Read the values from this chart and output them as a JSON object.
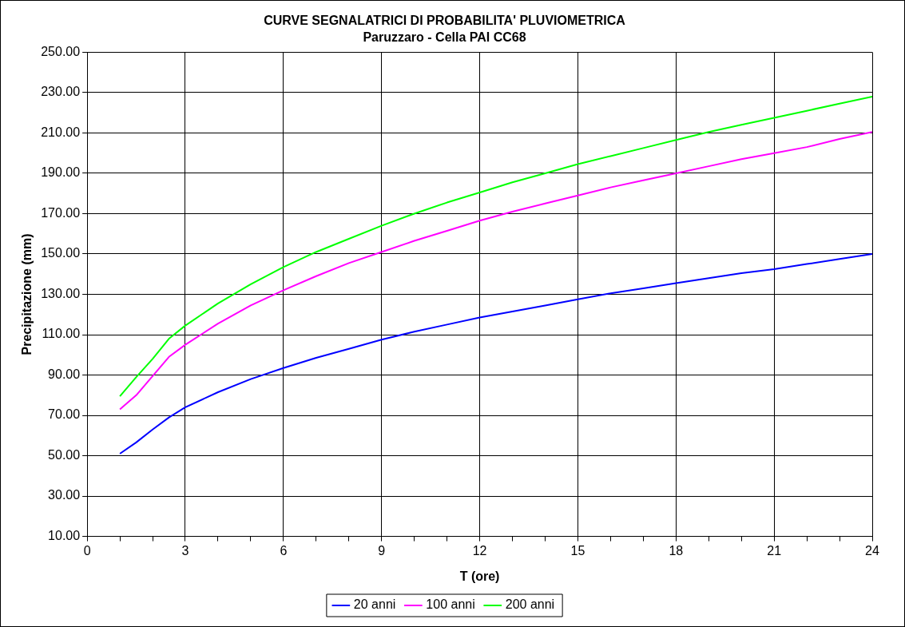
{
  "chart_data": {
    "type": "line",
    "title": "CURVE SEGNALATRICI DI PROBABILITA' PLUVIOMETRICA",
    "subtitle": "Paruzzaro - Cella PAI CC68",
    "xlabel": "T (ore)",
    "ylabel": "Precipitazione (mm)",
    "x": [
      1,
      1.5,
      2,
      2.5,
      3,
      4,
      5,
      6,
      7,
      8,
      9,
      10,
      11,
      12,
      13,
      14,
      15,
      16,
      17,
      18,
      19,
      20,
      21,
      22,
      23,
      24
    ],
    "series": [
      {
        "name": "20 anni",
        "color": "#0000ff",
        "values": [
          51,
          56.6,
          63,
          69,
          74,
          81.5,
          88,
          93.5,
          98.5,
          103,
          107.5,
          111.5,
          115,
          118.5,
          121.5,
          124.5,
          127.5,
          130.5,
          133,
          135.5,
          138,
          140.5,
          142.5,
          145,
          147.5,
          150
        ]
      },
      {
        "name": "100 anni",
        "color": "#ff00ff",
        "values": [
          73,
          80,
          89.5,
          99,
          105,
          115.5,
          124.5,
          132,
          139,
          145.5,
          151,
          156.5,
          161.5,
          166.5,
          171,
          175,
          179,
          183,
          186.5,
          190,
          193.5,
          197,
          200,
          203,
          207,
          210.5
        ]
      },
      {
        "name": "200 anni",
        "color": "#00ff00",
        "values": [
          79.5,
          89,
          98,
          108,
          114.5,
          125.5,
          135,
          143.5,
          151,
          157.5,
          164,
          170,
          175.5,
          180.5,
          185.5,
          190,
          194.5,
          198.5,
          202.5,
          206.5,
          210.5,
          214,
          217.5,
          221,
          224.5,
          228
        ]
      }
    ],
    "xlim": [
      0,
      24
    ],
    "xticks": [
      0,
      {
        "value": 1,
        "label": null
      },
      {
        "value": 2,
        "label": null
      },
      3,
      {
        "value": 4,
        "label": null
      },
      {
        "value": 5,
        "label": null
      },
      6,
      {
        "value": 7,
        "label": null
      },
      {
        "value": 8,
        "label": null
      },
      9,
      {
        "value": 10,
        "label": null
      },
      {
        "value": 11,
        "label": null
      },
      12,
      {
        "value": 13,
        "label": null
      },
      {
        "value": 14,
        "label": null
      },
      15,
      {
        "value": 16,
        "label": null
      },
      {
        "value": 17,
        "label": null
      },
      18,
      {
        "value": 19,
        "label": null
      },
      {
        "value": 20,
        "label": null
      },
      21,
      {
        "value": 22,
        "label": null
      },
      {
        "value": 23,
        "label": null
      },
      24
    ],
    "ylim": [
      10,
      250
    ],
    "yticks": [
      {
        "value": 10,
        "label": "10.00"
      },
      {
        "value": 30,
        "label": "30.00"
      },
      {
        "value": 50,
        "label": "50.00"
      },
      {
        "value": 70,
        "label": "70.00"
      },
      {
        "value": 90,
        "label": "90.00"
      },
      {
        "value": 110,
        "label": "110.00"
      },
      {
        "value": 130,
        "label": "130.00"
      },
      {
        "value": 150,
        "label": "150.00"
      },
      {
        "value": 170,
        "label": "170.00"
      },
      {
        "value": 190,
        "label": "190.00"
      },
      {
        "value": 210,
        "label": "210.00"
      },
      {
        "value": 230,
        "label": "230.00"
      },
      {
        "value": 250,
        "label": "250.00"
      }
    ],
    "grid": true,
    "legend": "bottom",
    "marker": "none",
    "line_style": "solid"
  }
}
